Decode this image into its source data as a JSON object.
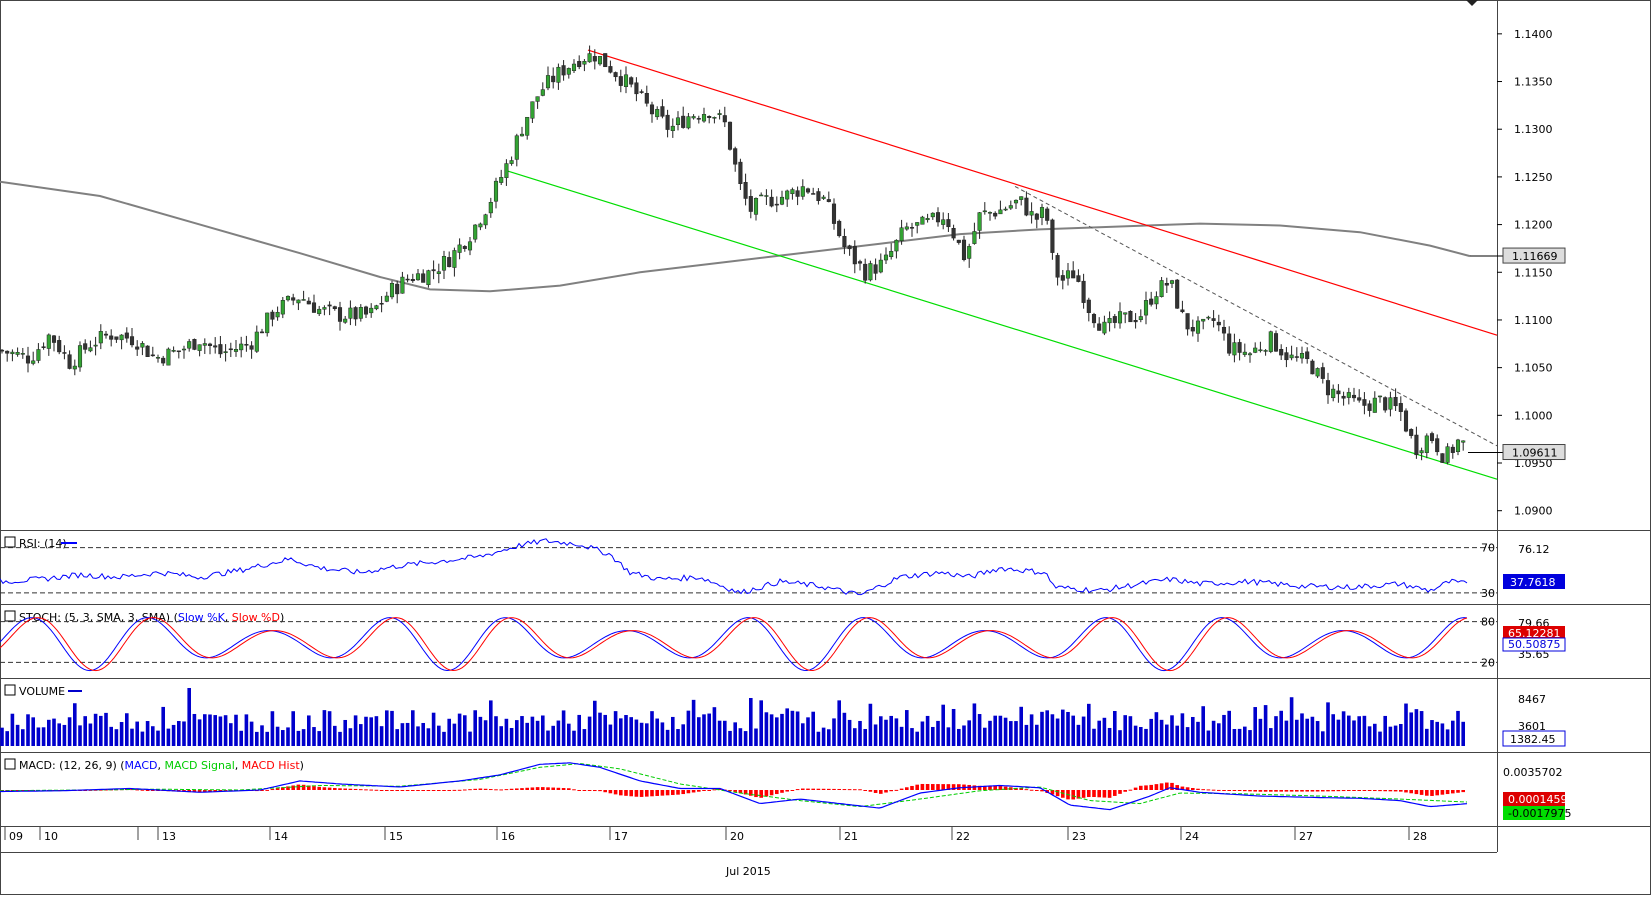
{
  "colors": {
    "up_candle": "#33a333",
    "down_candle": "#333333",
    "channel_upper": "#ff0000",
    "channel_lower": "#00dd00",
    "moving_average": "#808080",
    "trend_dashed": "#555555",
    "rsi_line": "#0000ff",
    "stoch_k": "#0000ff",
    "stoch_d": "#ff0000",
    "volume_bars": "#0000cc",
    "macd_line": "#0000ff",
    "macd_signal": "#00cc00",
    "macd_hist": "#ff0000"
  },
  "chart_data": {
    "type": "candlestick",
    "instrument_timeframe": "hourly",
    "x_date_labels": [
      "09",
      "10",
      "13",
      "14",
      "15",
      "16",
      "17",
      "20",
      "21",
      "22",
      "23",
      "24",
      "27",
      "28"
    ],
    "x_month_label": "Jul 2015",
    "price_axis": {
      "ticks": [
        "1.1400",
        "1.1350",
        "1.1300",
        "1.1250",
        "1.1200",
        "1.1150",
        "1.1100",
        "1.1050",
        "1.1000",
        "1.0950",
        "1.0900"
      ],
      "ylim": [
        1.0885,
        1.1425
      ]
    },
    "ma_last_label": "1.11669",
    "price_last_label": "1.09611",
    "price_path": [
      [
        0,
        1.1068
      ],
      [
        30,
        1.106
      ],
      [
        50,
        1.1085
      ],
      [
        70,
        1.1055
      ],
      [
        90,
        1.1075
      ],
      [
        110,
        1.1085
      ],
      [
        135,
        1.108
      ],
      [
        155,
        1.106
      ],
      [
        180,
        1.1068
      ],
      [
        200,
        1.108
      ],
      [
        220,
        1.1065
      ],
      [
        250,
        1.1075
      ],
      [
        275,
        1.111
      ],
      [
        300,
        1.1125
      ],
      [
        320,
        1.111
      ],
      [
        340,
        1.1105
      ],
      [
        370,
        1.1105
      ],
      [
        390,
        1.113
      ],
      [
        410,
        1.1145
      ],
      [
        430,
        1.115
      ],
      [
        450,
        1.1165
      ],
      [
        470,
        1.119
      ],
      [
        490,
        1.1225
      ],
      [
        510,
        1.127
      ],
      [
        525,
        1.131
      ],
      [
        540,
        1.134
      ],
      [
        560,
        1.136
      ],
      [
        580,
        1.1375
      ],
      [
        595,
        1.1378
      ],
      [
        610,
        1.1365
      ],
      [
        630,
        1.1345
      ],
      [
        650,
        1.132
      ],
      [
        670,
        1.13
      ],
      [
        690,
        1.1315
      ],
      [
        710,
        1.132
      ],
      [
        725,
        1.1305
      ],
      [
        740,
        1.124
      ],
      [
        750,
        1.1215
      ],
      [
        765,
        1.1225
      ],
      [
        785,
        1.123
      ],
      [
        805,
        1.124
      ],
      [
        825,
        1.1225
      ],
      [
        845,
        1.1175
      ],
      [
        865,
        1.115
      ],
      [
        885,
        1.116
      ],
      [
        905,
        1.1195
      ],
      [
        925,
        1.12
      ],
      [
        945,
        1.121
      ],
      [
        965,
        1.1165
      ],
      [
        980,
        1.121
      ],
      [
        1000,
        1.1215
      ],
      [
        1020,
        1.1225
      ],
      [
        1035,
        1.1205
      ],
      [
        1046,
        1.1215
      ],
      [
        1052,
        1.1165
      ],
      [
        1060,
        1.114
      ],
      [
        1075,
        1.115
      ],
      [
        1090,
        1.111
      ],
      [
        1105,
        1.109
      ],
      [
        1120,
        1.11
      ],
      [
        1140,
        1.1105
      ],
      [
        1155,
        1.113
      ],
      [
        1170,
        1.114
      ],
      [
        1185,
        1.1095
      ],
      [
        1200,
        1.109
      ],
      [
        1215,
        1.11
      ],
      [
        1230,
        1.107
      ],
      [
        1250,
        1.1065
      ],
      [
        1270,
        1.108
      ],
      [
        1290,
        1.106
      ],
      [
        1310,
        1.1055
      ],
      [
        1325,
        1.103
      ],
      [
        1340,
        1.102
      ],
      [
        1360,
        1.101
      ],
      [
        1380,
        1.1015
      ],
      [
        1400,
        1.1005
      ],
      [
        1415,
        1.0965
      ],
      [
        1430,
        1.098
      ],
      [
        1445,
        1.0955
      ],
      [
        1460,
        1.0975
      ],
      [
        1468,
        1.0961
      ]
    ],
    "channel_upper": [
      [
        588,
        1.1383
      ],
      [
        1497,
        1.1084
      ]
    ],
    "channel_lower": [
      [
        505,
        1.1257
      ],
      [
        1497,
        1.0933
      ]
    ],
    "trend_dashed": [
      [
        1015,
        1.124
      ],
      [
        1497,
        1.0968
      ]
    ],
    "moving_average": [
      [
        0,
        1.1245
      ],
      [
        100,
        1.123
      ],
      [
        200,
        1.12
      ],
      [
        300,
        1.117
      ],
      [
        380,
        1.1145
      ],
      [
        430,
        1.1132
      ],
      [
        490,
        1.113
      ],
      [
        560,
        1.1136
      ],
      [
        640,
        1.115
      ],
      [
        720,
        1.116
      ],
      [
        800,
        1.117
      ],
      [
        880,
        1.118
      ],
      [
        960,
        1.119
      ],
      [
        1040,
        1.1195
      ],
      [
        1120,
        1.1198
      ],
      [
        1200,
        1.1201
      ],
      [
        1280,
        1.1199
      ],
      [
        1360,
        1.1192
      ],
      [
        1430,
        1.1178
      ],
      [
        1470,
        1.1167
      ]
    ],
    "rsi": {
      "title": "RSI: (14)",
      "period": 14,
      "levels": [
        70,
        30
      ],
      "axis_label": "76.12",
      "last_label": "37.7618",
      "ylim": [
        22,
        82
      ],
      "values": [
        [
          0,
          40
        ],
        [
          40,
          42
        ],
        [
          80,
          46
        ],
        [
          120,
          44
        ],
        [
          160,
          48
        ],
        [
          200,
          44
        ],
        [
          240,
          50
        ],
        [
          290,
          60
        ],
        [
          320,
          52
        ],
        [
          360,
          48
        ],
        [
          400,
          54
        ],
        [
          440,
          58
        ],
        [
          480,
          62
        ],
        [
          520,
          72
        ],
        [
          545,
          76
        ],
        [
          580,
          73
        ],
        [
          610,
          64
        ],
        [
          630,
          48
        ],
        [
          660,
          42
        ],
        [
          700,
          44
        ],
        [
          740,
          30
        ],
        [
          780,
          40
        ],
        [
          820,
          36
        ],
        [
          860,
          28
        ],
        [
          900,
          44
        ],
        [
          940,
          48
        ],
        [
          970,
          44
        ],
        [
          1000,
          52
        ],
        [
          1045,
          48
        ],
        [
          1055,
          35
        ],
        [
          1100,
          32
        ],
        [
          1140,
          38
        ],
        [
          1170,
          42
        ],
        [
          1200,
          38
        ],
        [
          1250,
          40
        ],
        [
          1300,
          36
        ],
        [
          1350,
          35
        ],
        [
          1400,
          38
        ],
        [
          1430,
          32
        ],
        [
          1450,
          40
        ],
        [
          1468,
          37.76
        ]
      ]
    },
    "stochastic": {
      "title": "STOCH: (5, 3, SMA, 3, SMA)",
      "legend": [
        "Slow %K",
        "Slow %D"
      ],
      "levels": [
        80,
        20
      ],
      "axis_labels": [
        "79.66",
        "35.65"
      ],
      "last_labels": [
        "65.12281",
        "50.50875"
      ],
      "ylim": [
        0,
        100
      ]
    },
    "volume": {
      "title": "VOLUME",
      "axis_labels": [
        "8467",
        "3601"
      ],
      "last_label": "1382.45"
    },
    "macd": {
      "title": "MACD: (12, 26, 9)",
      "legend": [
        "MACD",
        "MACD Signal",
        "MACD Hist"
      ],
      "axis_label": "0.0035702",
      "last_labels": [
        "0.0001459",
        "-0.0017975"
      ],
      "ylim": [
        -0.0045,
        0.0045
      ],
      "macd": [
        [
          0,
          -0.0002
        ],
        [
          60,
          -0.0001
        ],
        [
          130,
          0.0002
        ],
        [
          200,
          -0.0003
        ],
        [
          260,
          0.0
        ],
        [
          300,
          0.0012
        ],
        [
          340,
          0.0008
        ],
        [
          400,
          0.0004
        ],
        [
          460,
          0.0012
        ],
        [
          500,
          0.002
        ],
        [
          540,
          0.0034
        ],
        [
          570,
          0.0036
        ],
        [
          600,
          0.003
        ],
        [
          640,
          0.0012
        ],
        [
          680,
          0.0002
        ],
        [
          720,
          0.0002
        ],
        [
          760,
          -0.0018
        ],
        [
          800,
          -0.0012
        ],
        [
          840,
          -0.0018
        ],
        [
          880,
          -0.0024
        ],
        [
          920,
          -0.0004
        ],
        [
          960,
          0.0003
        ],
        [
          1000,
          0.0006
        ],
        [
          1040,
          0.0003
        ],
        [
          1070,
          -0.002
        ],
        [
          1110,
          -0.0026
        ],
        [
          1150,
          -0.0008
        ],
        [
          1170,
          0.0003
        ],
        [
          1200,
          -0.0003
        ],
        [
          1260,
          -0.0008
        ],
        [
          1320,
          -0.001
        ],
        [
          1360,
          -0.0011
        ],
        [
          1400,
          -0.0014
        ],
        [
          1430,
          -0.0022
        ],
        [
          1468,
          -0.0018
        ]
      ],
      "signal": [
        [
          0,
          -0.0001
        ],
        [
          80,
          0.0
        ],
        [
          160,
          0.0001
        ],
        [
          240,
          0.0
        ],
        [
          320,
          0.0006
        ],
        [
          400,
          0.0005
        ],
        [
          480,
          0.0014
        ],
        [
          540,
          0.003
        ],
        [
          580,
          0.0035
        ],
        [
          620,
          0.0028
        ],
        [
          680,
          0.0008
        ],
        [
          740,
          -0.0004
        ],
        [
          800,
          -0.0014
        ],
        [
          860,
          -0.0022
        ],
        [
          920,
          -0.0012
        ],
        [
          980,
          -0.0001
        ],
        [
          1040,
          0.0004
        ],
        [
          1090,
          -0.0014
        ],
        [
          1140,
          -0.0018
        ],
        [
          1180,
          -0.0004
        ],
        [
          1240,
          -0.0005
        ],
        [
          1320,
          -0.0008
        ],
        [
          1400,
          -0.0012
        ],
        [
          1468,
          -0.0016
        ]
      ]
    }
  }
}
